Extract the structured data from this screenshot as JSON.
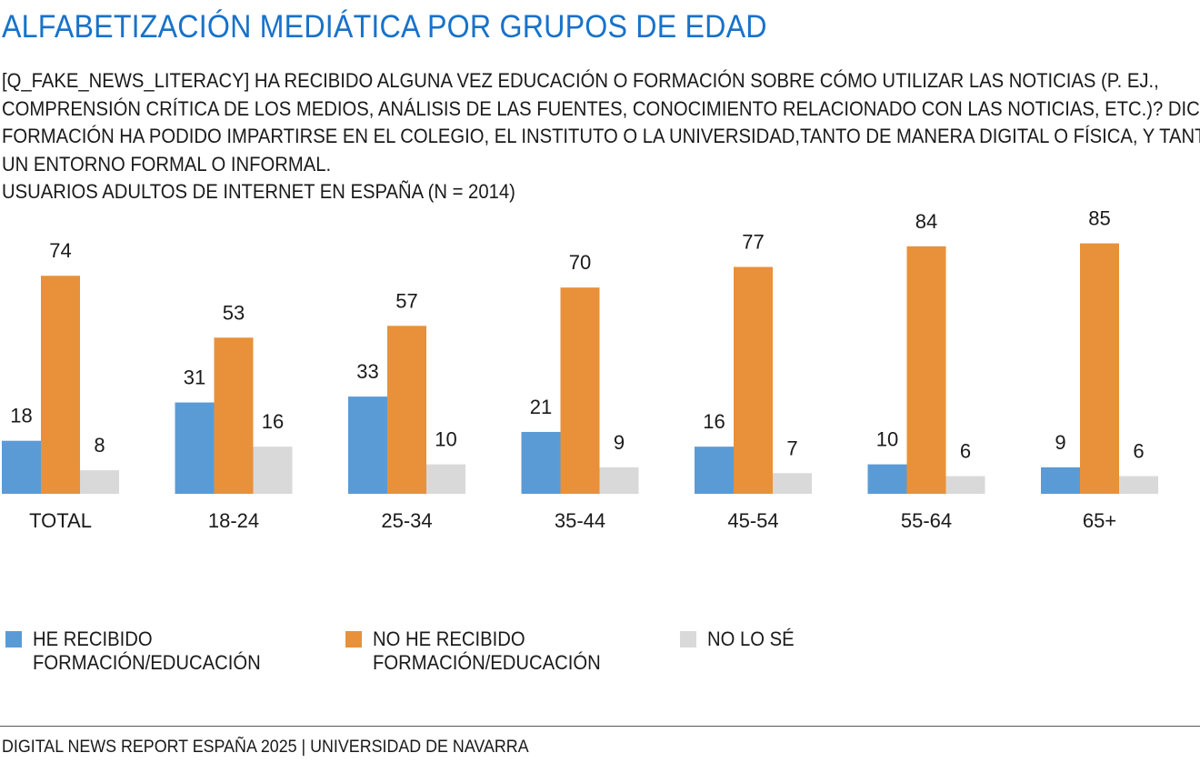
{
  "header": {
    "title": "ALFABETIZACIÓN MEDIÁTICA POR GRUPOS DE EDAD",
    "subtitle_lines": [
      "[Q_FAKE_NEWS_LITERACY] HA RECIBIDO ALGUNA VEZ EDUCACIÓN O FORMACIÓN SOBRE CÓMO UTILIZAR LAS NOTICIAS (P. EJ.,",
      "COMPRENSIÓN CRÍTICA DE LOS MEDIOS, ANÁLISIS DE LAS FUENTES, CONOCIMIENTO RELACIONADO CON LAS NOTICIAS, ETC.)? DICHA",
      "FORMACIÓN HA PODIDO IMPARTIRSE EN EL COLEGIO, EL INSTITUTO O LA UNIVERSIDAD,TANTO DE MANERA DIGITAL O FÍSICA, Y TANTO EN",
      "UN ENTORNO FORMAL O INFORMAL.",
      "USUARIOS ADULTOS DE INTERNET EN ESPAÑA (N = 2014)"
    ]
  },
  "chart_data": {
    "type": "bar",
    "categories": [
      "TOTAL",
      "18-24",
      "25-34",
      "35-44",
      "45-54",
      "55-64",
      "65+"
    ],
    "series": [
      {
        "name": "HE RECIBIDO FORMACIÓN/EDUCACIÓN",
        "color": "#5b9bd5",
        "values": [
          18,
          31,
          33,
          21,
          16,
          10,
          9
        ]
      },
      {
        "name": "NO HE RECIBIDO FORMACIÓN/EDUCACIÓN",
        "color": "#e8913a",
        "values": [
          74,
          53,
          57,
          70,
          77,
          84,
          85
        ]
      },
      {
        "name": "NO LO SÉ",
        "color": "#d9d9d9",
        "values": [
          8,
          16,
          10,
          9,
          7,
          6,
          6
        ]
      }
    ],
    "ylim": [
      0,
      100
    ],
    "grid": false,
    "data_labels": true,
    "legend_position": "bottom"
  },
  "legend": {
    "items": [
      {
        "lines": [
          "HE RECIBIDO",
          "FORMACIÓN/EDUCACIÓN"
        ],
        "color": "#5b9bd5"
      },
      {
        "lines": [
          "NO HE RECIBIDO",
          "FORMACIÓN/EDUCACIÓN"
        ],
        "color": "#e8913a"
      },
      {
        "lines": [
          "NO LO SÉ"
        ],
        "color": "#d9d9d9"
      }
    ]
  },
  "footer": {
    "text": "DIGITAL NEWS REPORT ESPAÑA 2025 | UNIVERSIDAD DE NAVARRA"
  }
}
